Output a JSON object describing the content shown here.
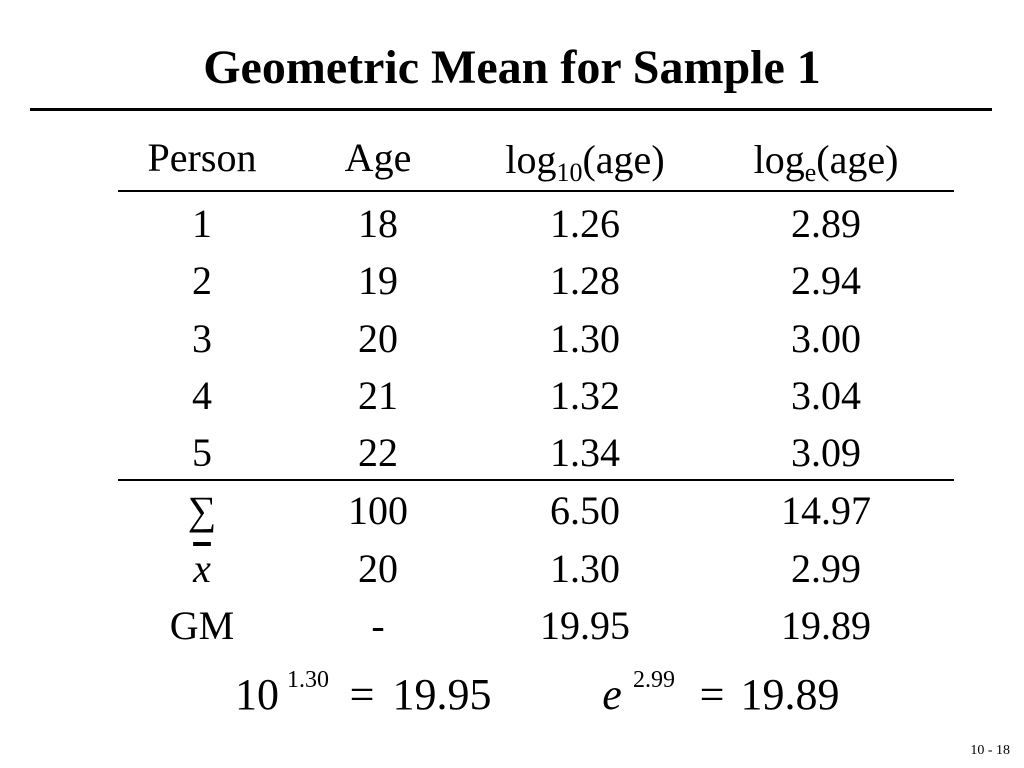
{
  "title": "Geometric Mean for Sample 1",
  "table": {
    "header": [
      {
        "text": "Person"
      },
      {
        "text": "Age"
      },
      {
        "base": "log",
        "sub": "10",
        "rest": "(age)"
      },
      {
        "base": "log",
        "sub": "e",
        "rest": "(age)"
      }
    ],
    "rows": [
      [
        "1",
        "18",
        "1.26",
        "2.89"
      ],
      [
        "2",
        "19",
        "1.28",
        "2.94"
      ],
      [
        "3",
        "20",
        "1.30",
        "3.00"
      ],
      [
        "4",
        "21",
        "1.32",
        "3.04"
      ],
      [
        "5",
        "22",
        "1.34",
        "3.09"
      ]
    ],
    "summary_rows": [
      [
        "∑",
        "100",
        "6.50",
        "14.97"
      ],
      [
        "x",
        "20",
        "1.30",
        "2.99"
      ],
      [
        "GM",
        "-",
        "19.95",
        "19.89"
      ]
    ]
  },
  "formulas": [
    {
      "base": "10",
      "exponent": "1.30",
      "equals": "=",
      "result": "19.95"
    },
    {
      "base": "e",
      "exponent": "2.99",
      "equals": "=",
      "result": "19.89"
    }
  ],
  "page_number": "10 - 18"
}
